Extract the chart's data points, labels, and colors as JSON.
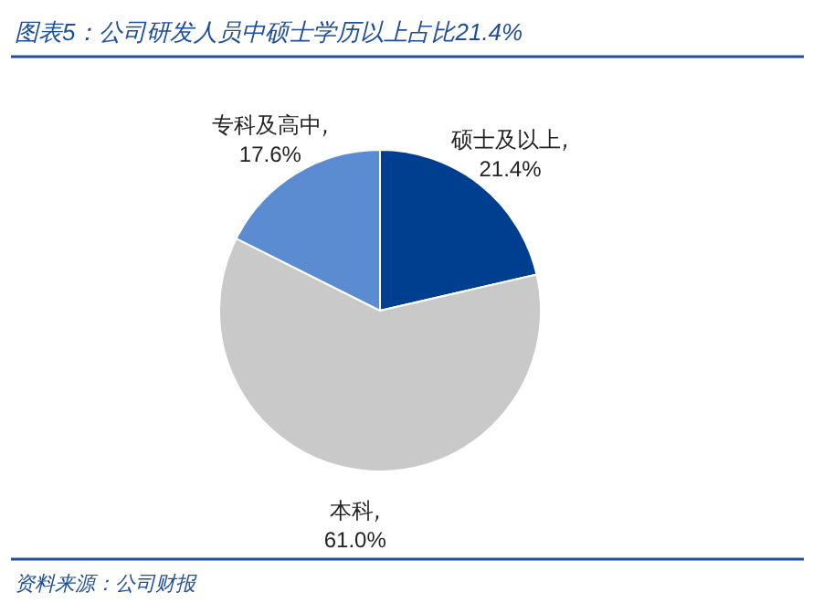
{
  "chart_data": {
    "type": "pie",
    "title": "图表5：公司研发人员中硕士学历以上占比21.4%",
    "categories": [
      "硕士及以上",
      "本科",
      "专科及高中"
    ],
    "values": [
      21.4,
      61.0,
      17.6
    ],
    "value_labels": [
      "21.4%",
      "61.0%",
      "17.6%"
    ],
    "colors": [
      "#003f8f",
      "#c9c9c9",
      "#5b8bd0"
    ],
    "annotations": [
      "资料来源：公司财报"
    ]
  }
}
